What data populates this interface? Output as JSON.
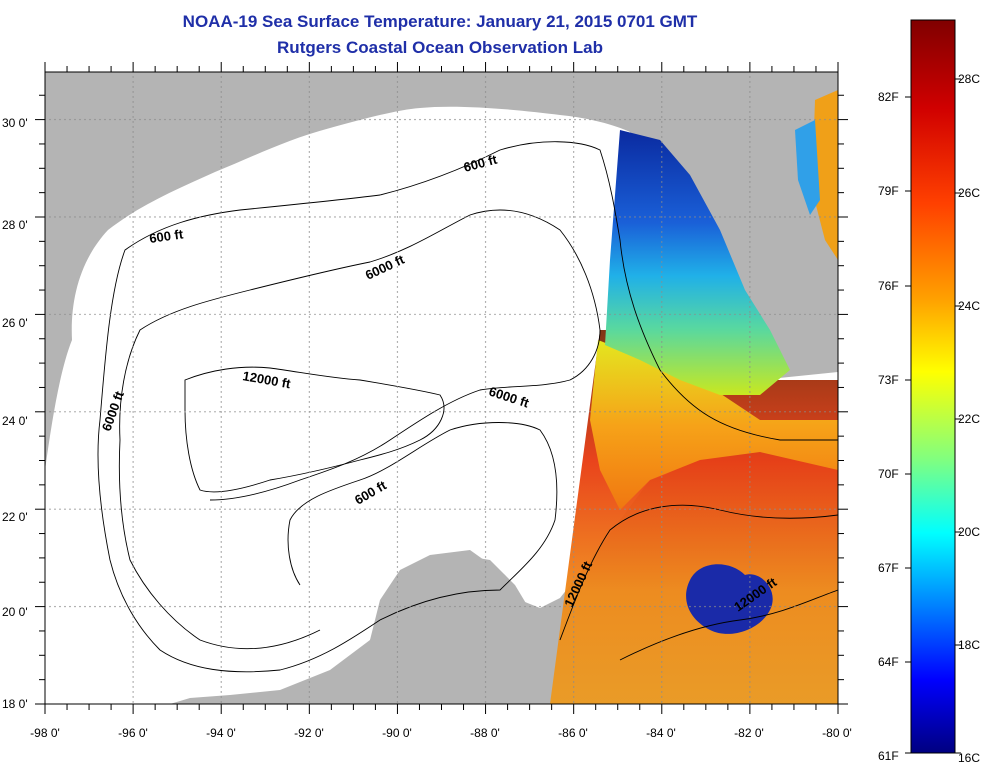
{
  "header": {
    "title": "NOAA-19 Sea Surface Temperature:  January 21, 2015 0701 GMT",
    "subtitle": "Rutgers Coastal Ocean Observation Lab"
  },
  "map": {
    "lon_ticks": [
      "-98 0'",
      "-96 0'",
      "-94 0'",
      "-92 0'",
      "-90 0'",
      "-88 0'",
      "-86 0'",
      "-84 0'",
      "-82 0'",
      "-80 0'"
    ],
    "lat_ticks": [
      "18 0'",
      "20 0'",
      "22 0'",
      "24 0'",
      "26 0'",
      "28 0'",
      "30 0'"
    ],
    "contour_labels": [
      "600 ft",
      "600 ft",
      "600 ft",
      "6000 ft",
      "6000 ft",
      "6000 ft",
      "12000 ft",
      "12000 ft",
      "12000 ft"
    ]
  },
  "colorbar": {
    "fahrenheit_labels": [
      "82F",
      "79F",
      "76F",
      "73F",
      "70F",
      "67F",
      "64F",
      "61F"
    ],
    "celsius_labels": [
      "28C",
      "26C",
      "24C",
      "22C",
      "20C",
      "18C",
      "16C"
    ],
    "colors": [
      "#800000",
      "#ff0000",
      "#ff8000",
      "#ffff00",
      "#80ff80",
      "#00ffff",
      "#0080ff",
      "#0000ff",
      "#000080"
    ]
  },
  "colors": {
    "land": "#b4b4b4",
    "title": "#1f2fa8",
    "grid_dots": "#8c8c8c"
  }
}
